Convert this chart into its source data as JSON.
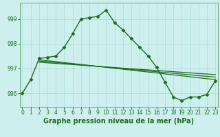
{
  "series": [
    {
      "x": [
        0,
        1,
        2,
        3,
        4,
        5,
        6,
        7,
        8,
        9,
        10,
        11,
        12,
        13,
        14,
        15,
        16,
        17,
        18,
        19,
        20,
        21,
        22,
        23
      ],
      "y": [
        996.0,
        996.55,
        997.4,
        997.45,
        997.5,
        997.85,
        998.4,
        999.0,
        999.05,
        999.1,
        999.35,
        998.85,
        998.55,
        998.2,
        997.85,
        997.5,
        997.05,
        996.45,
        995.85,
        995.7,
        995.85,
        995.85,
        995.95,
        996.5
      ],
      "color": "#1a6b1a",
      "marker": "D",
      "markersize": 2.5,
      "linewidth": 1.0
    },
    {
      "x": [
        2,
        23
      ],
      "y": [
        997.35,
        996.55
      ],
      "color": "#1a6b1a",
      "linewidth": 0.9
    },
    {
      "x": [
        2,
        23
      ],
      "y": [
        997.3,
        996.65
      ],
      "color": "#1a6b1a",
      "linewidth": 0.9
    },
    {
      "x": [
        2,
        23
      ],
      "y": [
        997.25,
        996.75
      ],
      "color": "#1a6b1a",
      "linewidth": 0.9
    }
  ],
  "xlim": [
    -0.3,
    23.3
  ],
  "ylim": [
    995.45,
    999.65
  ],
  "yticks": [
    996,
    997,
    998,
    999
  ],
  "xticks": [
    0,
    1,
    2,
    3,
    4,
    5,
    6,
    7,
    8,
    9,
    10,
    11,
    12,
    13,
    14,
    15,
    16,
    17,
    18,
    19,
    20,
    21,
    22,
    23
  ],
  "xlabel": "Graphe pression niveau de la mer (hPa)",
  "bg_color": "#cdf0ee",
  "grid_color": "#a8ddd8",
  "tick_color": "#1a6b1a",
  "label_color": "#1a6b1a",
  "axis_color": "#5a9a5a",
  "tick_fontsize": 5.5,
  "label_fontsize": 7.0
}
